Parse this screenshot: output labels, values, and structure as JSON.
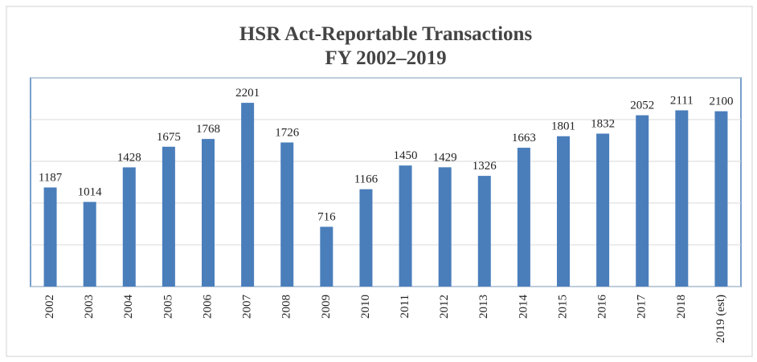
{
  "chart_data": {
    "type": "bar",
    "title": "HSR Act-Reportable Transactions",
    "subtitle": "FY 2002–2019",
    "categories": [
      "2002",
      "2003",
      "2004",
      "2005",
      "2006",
      "2007",
      "2008",
      "2009",
      "2010",
      "2011",
      "2012",
      "2013",
      "2014",
      "2015",
      "2016",
      "2017",
      "2018",
      "2019 (est)"
    ],
    "values": [
      1187,
      1014,
      1428,
      1675,
      1768,
      2201,
      1726,
      716,
      1166,
      1450,
      1429,
      1326,
      1663,
      1801,
      1832,
      2052,
      2111,
      2100
    ],
    "color": "#4a7ebb",
    "ylim": [
      0,
      2500
    ],
    "yticks": [
      0,
      500,
      1000,
      1500,
      2000,
      2500
    ],
    "grid": true
  }
}
